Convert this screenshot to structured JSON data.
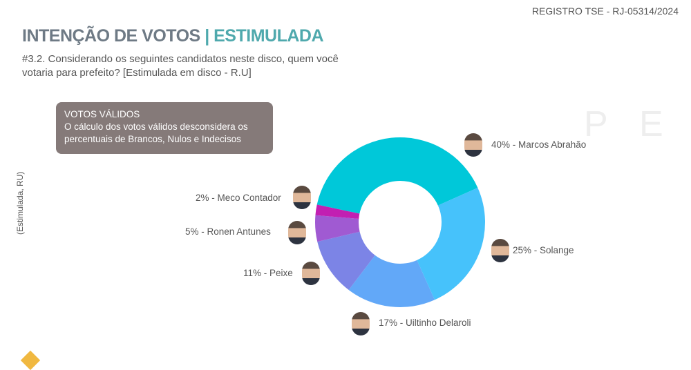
{
  "registro": "REGISTRO TSE - RJ-05314/2024",
  "title": {
    "main": "INTENÇÃO DE VOTOS ",
    "accent": "| ESTIMULADA"
  },
  "question": "#3.2. Considerando os seguintes candidatos neste disco, quem você votaria para prefeito? [Estimulada em disco - R.U]",
  "note": {
    "heading": "VOTOS VÁLIDOS",
    "text": "O cálculo dos votos válidos desconsidera os percentuais de Brancos, Nulos e Indecisos"
  },
  "chart_data": {
    "type": "pie",
    "donut": true,
    "ylabel": "(Estimulada, RU)",
    "slices": [
      {
        "name": "Marcos Abrahão",
        "value": 40,
        "label": "40% - Marcos Abrahão",
        "color": "#00c8d9"
      },
      {
        "name": "Solange",
        "value": 25,
        "label": "25% - Solange",
        "color": "#46c2fb"
      },
      {
        "name": "Uiltinho Delaroli",
        "value": 17,
        "label": "17% - Uiltinho Delaroli",
        "color": "#62a8f8"
      },
      {
        "name": "Peixe",
        "value": 11,
        "label": "11% - Peixe",
        "color": "#7c84e6"
      },
      {
        "name": "Ronen Antunes",
        "value": 5,
        "label": "5% - Ronen Antunes",
        "color": "#a05ad2"
      },
      {
        "name": "Meco Contador",
        "value": 2,
        "label": "2% - Meco Contador",
        "color": "#c21fb2"
      }
    ]
  }
}
